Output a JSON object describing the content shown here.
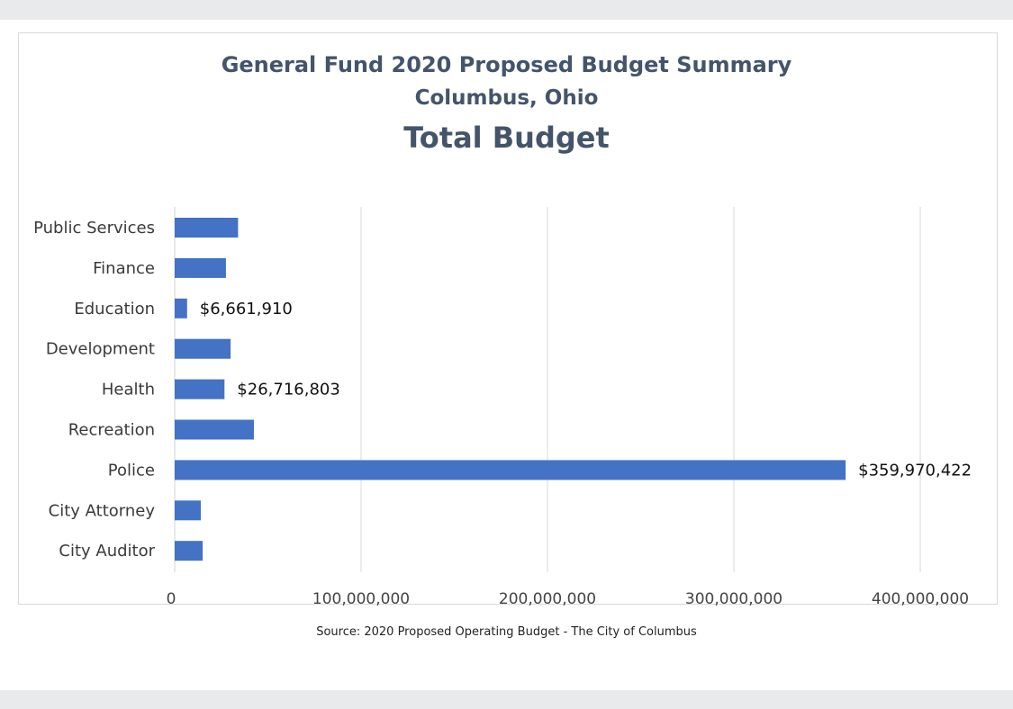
{
  "chart_data": {
    "type": "bar",
    "orientation": "horizontal",
    "title": "General Fund 2020 Proposed Budget Summary",
    "subtitle": "Columbus, Ohio",
    "subtitle2": "Total Budget",
    "categories": [
      "Public Services",
      "Finance",
      "Education",
      "Development",
      "Health",
      "Recreation",
      "Police",
      "City Attorney",
      "City Auditor"
    ],
    "values": [
      34000000,
      27500000,
      6661910,
      30000000,
      26716803,
      42500000,
      359970422,
      14000000,
      15000000
    ],
    "data_labels": [
      "",
      "",
      "$6,661,910",
      "",
      "$26,716,803",
      "",
      "$359,970,422",
      "",
      ""
    ],
    "x_ticks": [
      "0",
      "100,000,000",
      "200,000,000",
      "300,000,000",
      "400,000,000"
    ],
    "xlim": [
      0,
      400000000
    ],
    "bar_color": "#4472c4",
    "grid": true,
    "source": "Source: 2020 Proposed Operating Budget - The City of Columbus"
  }
}
